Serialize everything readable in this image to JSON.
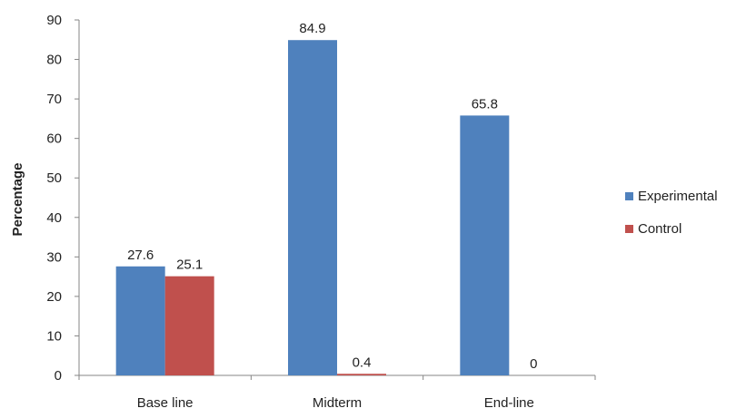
{
  "chart_data": {
    "type": "bar",
    "categories": [
      "Base line",
      "Midterm",
      "End-line"
    ],
    "series": [
      {
        "name": "Experimental",
        "values": [
          27.6,
          84.9,
          65.8
        ],
        "color": "#4F81BD"
      },
      {
        "name": "Control",
        "values": [
          25.1,
          0.4,
          0
        ],
        "color": "#C0504D"
      }
    ],
    "data_labels": [
      [
        "27.6",
        "84.9",
        "65.8"
      ],
      [
        "25.1",
        "0.4",
        "0"
      ]
    ],
    "yticks": [
      "0",
      "10",
      "20",
      "30",
      "40",
      "50",
      "60",
      "70",
      "80",
      "90"
    ],
    "ylim": [
      0,
      90
    ],
    "title": "",
    "xlabel": "",
    "ylabel": "Percentage",
    "grid": false,
    "legend_position": "right"
  }
}
